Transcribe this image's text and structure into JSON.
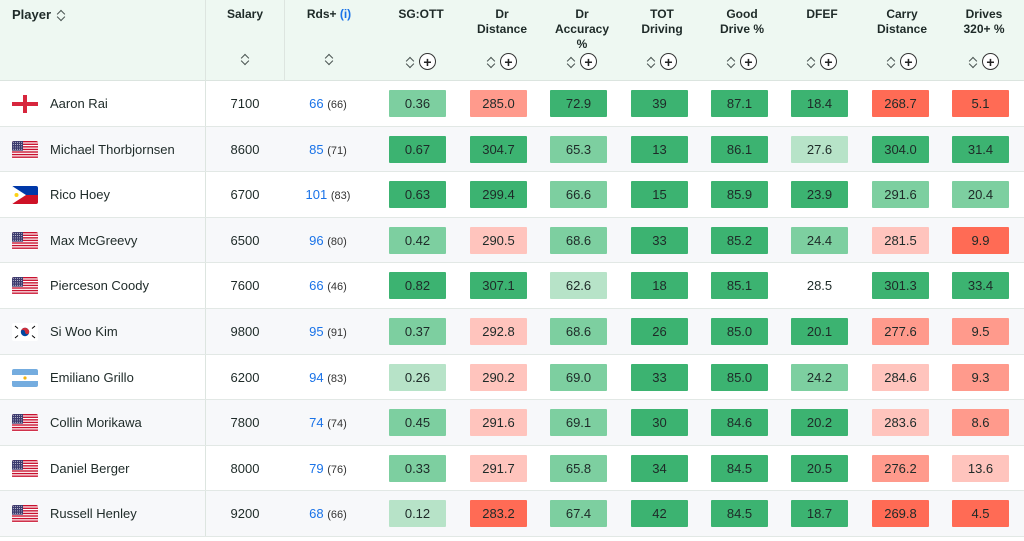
{
  "header": {
    "player": "Player",
    "salary": "Salary",
    "rds": "Rds+",
    "rds_info": "(i)",
    "columns": [
      {
        "key": "sgott",
        "title": "SG:OTT",
        "plus": "+"
      },
      {
        "key": "drdist",
        "title": "Dr\nDistance",
        "plus": "+"
      },
      {
        "key": "dracc",
        "title": "Dr\nAccuracy\n%",
        "plus": "+"
      },
      {
        "key": "tot",
        "title": "TOT\nDriving",
        "plus": "+"
      },
      {
        "key": "good",
        "title": "Good\nDrive %",
        "plus": "+"
      },
      {
        "key": "dfef",
        "title": "DFEF",
        "plus": "+"
      },
      {
        "key": "carry",
        "title": "Carry\nDistance",
        "plus": "+"
      },
      {
        "key": "d320",
        "title": "Drives\n320+ %",
        "plus": "+"
      }
    ]
  },
  "colors": {
    "g1": "#3cb371",
    "g2": "#7dcfa0",
    "g3": "#b7e3c8",
    "r1": "#ff6b55",
    "r2": "#ff9a8c",
    "r3": "#ffc4bd",
    "none": "transparent"
  },
  "players": [
    {
      "name": "Aaron Rai",
      "flag": "england",
      "salary": "7100",
      "rds": "66",
      "rds_sub": "(66)",
      "stats": [
        [
          "0.36",
          "g2"
        ],
        [
          "285.0",
          "r2"
        ],
        [
          "72.9",
          "g1"
        ],
        [
          "39",
          "g1"
        ],
        [
          "87.1",
          "g1"
        ],
        [
          "18.4",
          "g1"
        ],
        [
          "268.7",
          "r1"
        ],
        [
          "5.1",
          "r1"
        ]
      ]
    },
    {
      "name": "Michael Thorbjornsen",
      "flag": "usa",
      "salary": "8600",
      "rds": "85",
      "rds_sub": "(71)",
      "stats": [
        [
          "0.67",
          "g1"
        ],
        [
          "304.7",
          "g1"
        ],
        [
          "65.3",
          "g2"
        ],
        [
          "13",
          "g1"
        ],
        [
          "86.1",
          "g1"
        ],
        [
          "27.6",
          "g3"
        ],
        [
          "304.0",
          "g1"
        ],
        [
          "31.4",
          "g1"
        ]
      ]
    },
    {
      "name": "Rico Hoey",
      "flag": "philippines",
      "salary": "6700",
      "rds": "101",
      "rds_sub": "(83)",
      "stats": [
        [
          "0.63",
          "g1"
        ],
        [
          "299.4",
          "g1"
        ],
        [
          "66.6",
          "g2"
        ],
        [
          "15",
          "g1"
        ],
        [
          "85.9",
          "g1"
        ],
        [
          "23.9",
          "g1"
        ],
        [
          "291.6",
          "g2"
        ],
        [
          "20.4",
          "g2"
        ]
      ]
    },
    {
      "name": "Max McGreevy",
      "flag": "usa",
      "salary": "6500",
      "rds": "96",
      "rds_sub": "(80)",
      "stats": [
        [
          "0.42",
          "g2"
        ],
        [
          "290.5",
          "r3"
        ],
        [
          "68.6",
          "g2"
        ],
        [
          "33",
          "g1"
        ],
        [
          "85.2",
          "g1"
        ],
        [
          "24.4",
          "g2"
        ],
        [
          "281.5",
          "r3"
        ],
        [
          "9.9",
          "r1"
        ]
      ]
    },
    {
      "name": "Pierceson Coody",
      "flag": "usa",
      "salary": "7600",
      "rds": "66",
      "rds_sub": "(46)",
      "stats": [
        [
          "0.82",
          "g1"
        ],
        [
          "307.1",
          "g1"
        ],
        [
          "62.6",
          "g3"
        ],
        [
          "18",
          "g1"
        ],
        [
          "85.1",
          "g1"
        ],
        [
          "28.5",
          "none"
        ],
        [
          "301.3",
          "g1"
        ],
        [
          "33.4",
          "g1"
        ]
      ]
    },
    {
      "name": "Si Woo Kim",
      "flag": "korea",
      "salary": "9800",
      "rds": "95",
      "rds_sub": "(91)",
      "stats": [
        [
          "0.37",
          "g2"
        ],
        [
          "292.8",
          "r3"
        ],
        [
          "68.6",
          "g2"
        ],
        [
          "26",
          "g1"
        ],
        [
          "85.0",
          "g1"
        ],
        [
          "20.1",
          "g1"
        ],
        [
          "277.6",
          "r2"
        ],
        [
          "9.5",
          "r2"
        ]
      ]
    },
    {
      "name": "Emiliano Grillo",
      "flag": "argentina",
      "salary": "6200",
      "rds": "94",
      "rds_sub": "(83)",
      "stats": [
        [
          "0.26",
          "g3"
        ],
        [
          "290.2",
          "r3"
        ],
        [
          "69.0",
          "g2"
        ],
        [
          "33",
          "g1"
        ],
        [
          "85.0",
          "g1"
        ],
        [
          "24.2",
          "g2"
        ],
        [
          "284.6",
          "r3"
        ],
        [
          "9.3",
          "r2"
        ]
      ]
    },
    {
      "name": "Collin Morikawa",
      "flag": "usa",
      "salary": "7800",
      "rds": "74",
      "rds_sub": "(74)",
      "stats": [
        [
          "0.45",
          "g2"
        ],
        [
          "291.6",
          "r3"
        ],
        [
          "69.1",
          "g2"
        ],
        [
          "30",
          "g1"
        ],
        [
          "84.6",
          "g1"
        ],
        [
          "20.2",
          "g1"
        ],
        [
          "283.6",
          "r3"
        ],
        [
          "8.6",
          "r2"
        ]
      ]
    },
    {
      "name": "Daniel Berger",
      "flag": "usa",
      "salary": "8000",
      "rds": "79",
      "rds_sub": "(76)",
      "stats": [
        [
          "0.33",
          "g2"
        ],
        [
          "291.7",
          "r3"
        ],
        [
          "65.8",
          "g2"
        ],
        [
          "34",
          "g1"
        ],
        [
          "84.5",
          "g1"
        ],
        [
          "20.5",
          "g1"
        ],
        [
          "276.2",
          "r2"
        ],
        [
          "13.6",
          "r3"
        ]
      ]
    },
    {
      "name": "Russell Henley",
      "flag": "usa",
      "salary": "9200",
      "rds": "68",
      "rds_sub": "(66)",
      "stats": [
        [
          "0.12",
          "g3"
        ],
        [
          "283.2",
          "r1"
        ],
        [
          "67.4",
          "g2"
        ],
        [
          "42",
          "g1"
        ],
        [
          "84.5",
          "g1"
        ],
        [
          "18.7",
          "g1"
        ],
        [
          "269.8",
          "r1"
        ],
        [
          "4.5",
          "r1"
        ]
      ]
    }
  ]
}
